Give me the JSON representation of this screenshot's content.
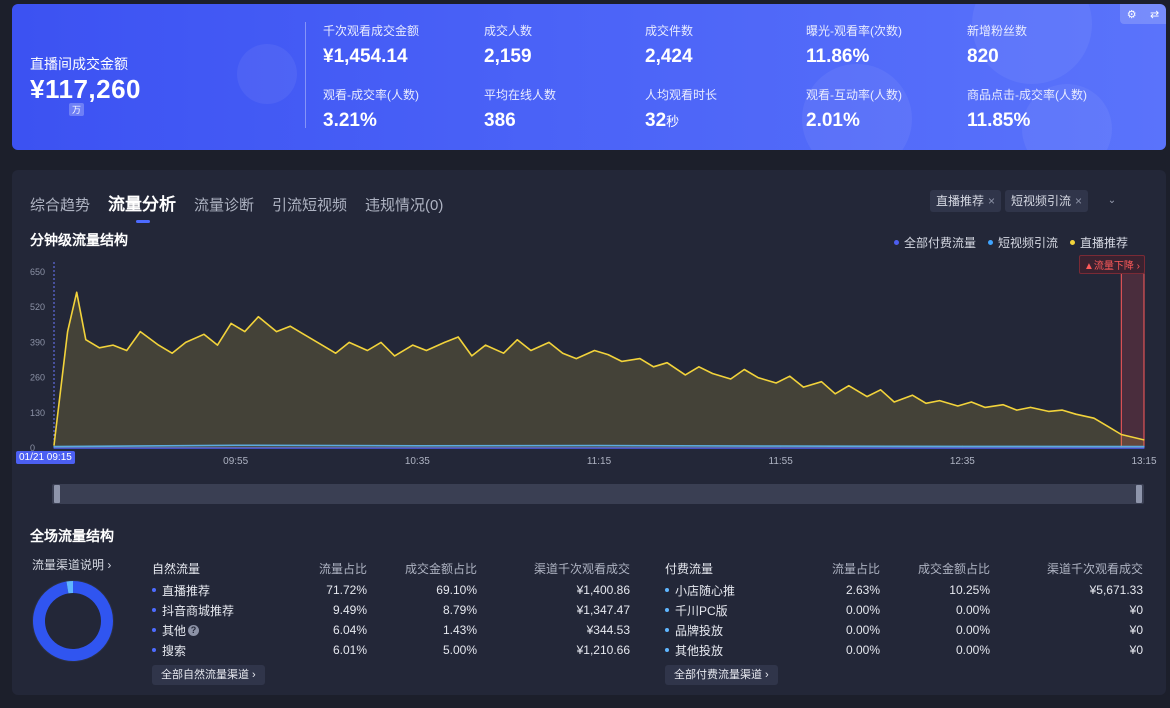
{
  "banner": {
    "gmv_label": "直播间成交金额",
    "gmv_value": "¥117,260",
    "gmv_unit": "万",
    "metrics": [
      {
        "label": "千次观看成交金额",
        "value": "¥1,454.14"
      },
      {
        "label": "成交人数",
        "value": "2,159"
      },
      {
        "label": "成交件数",
        "value": "2,424"
      },
      {
        "label": "曝光-观看率(次数)",
        "value": "11.86%"
      },
      {
        "label": "新增粉丝数",
        "value": "820"
      },
      {
        "label": "观看-成交率(人数)",
        "value": "3.21%"
      },
      {
        "label": "平均在线人数",
        "value": "386"
      },
      {
        "label": "人均观看时长",
        "value": "32",
        "unit": "秒"
      },
      {
        "label": "观看-互动率(人数)",
        "value": "2.01%"
      },
      {
        "label": "商品点击-成交率(人数)",
        "value": "11.85%"
      }
    ],
    "icons": [
      "gear-icon",
      "swap-icon"
    ]
  },
  "tabs": [
    {
      "label": "综合趋势",
      "active": false
    },
    {
      "label": "流量分析",
      "active": true
    },
    {
      "label": "流量诊断",
      "active": false
    },
    {
      "label": "引流短视频",
      "active": false
    },
    {
      "label": "违规情况(0)",
      "active": false
    }
  ],
  "filters": {
    "chips": [
      "直播推荐",
      "短视频引流"
    ],
    "remove_glyph": "×",
    "dropdown_glyph": "⌄"
  },
  "minute_section": {
    "title": "分钟级流量结构",
    "legend": [
      {
        "name": "全部付费流量",
        "color": "#4d5ef0"
      },
      {
        "name": "短视频引流",
        "color": "#3fa4ff"
      },
      {
        "name": "直播推荐",
        "color": "#f2d33b"
      }
    ],
    "alert": "▲流量下降 ›",
    "start_label": "01/21 09:15"
  },
  "chart_data": {
    "type": "area",
    "y_ticks": [
      0,
      130,
      260,
      390,
      520,
      650
    ],
    "ylim": [
      0,
      650
    ],
    "x_ticks": [
      "09:55",
      "10:35",
      "11:15",
      "11:55",
      "12:35",
      "13:15"
    ],
    "x_range": [
      "09:15",
      "13:15"
    ],
    "grid": false,
    "legend_position": "top-right",
    "series": [
      {
        "name": "直播推荐",
        "color": "#f2d33b",
        "x": [
          "09:15",
          "09:18",
          "09:20",
          "09:22",
          "09:25",
          "09:28",
          "09:31",
          "09:34",
          "09:38",
          "09:41",
          "09:44",
          "09:48",
          "09:51",
          "09:54",
          "09:57",
          "10:00",
          "10:04",
          "10:07",
          "10:10",
          "10:14",
          "10:17",
          "10:20",
          "10:24",
          "10:27",
          "10:30",
          "10:34",
          "10:37",
          "10:41",
          "10:44",
          "10:47",
          "10:50",
          "10:54",
          "10:57",
          "11:00",
          "11:04",
          "11:07",
          "11:10",
          "11:14",
          "11:17",
          "11:20",
          "11:24",
          "11:27",
          "11:30",
          "11:34",
          "11:37",
          "11:40",
          "11:44",
          "11:47",
          "11:50",
          "11:54",
          "11:57",
          "12:00",
          "12:04",
          "12:07",
          "12:10",
          "12:14",
          "12:17",
          "12:20",
          "12:24",
          "12:27",
          "12:30",
          "12:34",
          "12:37",
          "12:40",
          "12:44",
          "12:47",
          "12:50",
          "12:54",
          "12:57",
          "13:00",
          "13:04",
          "13:07",
          "13:10",
          "13:15"
        ],
        "values": [
          10,
          430,
          575,
          400,
          370,
          380,
          360,
          430,
          380,
          350,
          390,
          420,
          380,
          460,
          430,
          485,
          430,
          450,
          420,
          380,
          350,
          390,
          360,
          390,
          340,
          380,
          360,
          390,
          410,
          340,
          380,
          350,
          400,
          360,
          390,
          350,
          330,
          360,
          345,
          320,
          330,
          300,
          315,
          270,
          300,
          275,
          255,
          290,
          260,
          240,
          265,
          225,
          245,
          200,
          230,
          190,
          215,
          170,
          195,
          165,
          175,
          155,
          170,
          150,
          160,
          140,
          150,
          135,
          140,
          125,
          110,
          80,
          50,
          30
        ]
      },
      {
        "name": "短视频引流",
        "color": "#3fa4ff",
        "x": [
          "09:15",
          "09:55",
          "10:35",
          "11:15",
          "11:55",
          "12:35",
          "13:15"
        ],
        "values": [
          5,
          10,
          8,
          9,
          7,
          6,
          5
        ]
      },
      {
        "name": "全部付费流量",
        "color": "#4d5ef0",
        "x": [
          "09:15",
          "09:55",
          "10:35",
          "11:15",
          "11:55",
          "12:35",
          "13:15"
        ],
        "values": [
          0,
          0,
          0,
          0,
          0,
          0,
          0
        ]
      }
    ]
  },
  "full_section": {
    "title": "全场流量结构",
    "channel_link": "流量渠道说明 ›",
    "donut": {
      "slices": [
        {
          "name": "自然流量",
          "value": 97.37,
          "color": "#3055f0"
        },
        {
          "name": "付费流量",
          "value": 2.63,
          "color": "#5fb6ff"
        }
      ]
    }
  },
  "natural_table": {
    "headers": [
      "自然流量",
      "流量占比",
      "成交金额占比",
      "渠道千次观看成交"
    ],
    "rows": [
      {
        "name": "直播推荐",
        "share": "71.72%",
        "gmv_share": "69.10%",
        "gpm": "¥1,400.86",
        "help": false
      },
      {
        "name": "抖音商城推荐",
        "share": "9.49%",
        "gmv_share": "8.79%",
        "gpm": "¥1,347.47",
        "help": false
      },
      {
        "name": "其他",
        "share": "6.04%",
        "gmv_share": "1.43%",
        "gpm": "¥344.53",
        "help": true
      },
      {
        "name": "搜索",
        "share": "6.01%",
        "gmv_share": "5.00%",
        "gpm": "¥1,210.66",
        "help": false
      }
    ],
    "all_link": "全部自然流量渠道 ›"
  },
  "paid_table": {
    "headers": [
      "付费流量",
      "流量占比",
      "成交金额占比",
      "渠道千次观看成交"
    ],
    "rows": [
      {
        "name": "小店随心推",
        "share": "2.63%",
        "gmv_share": "10.25%",
        "gpm": "¥5,671.33",
        "help": false
      },
      {
        "name": "千川PC版",
        "share": "0.00%",
        "gmv_share": "0.00%",
        "gpm": "¥0",
        "help": false
      },
      {
        "name": "品牌投放",
        "share": "0.00%",
        "gmv_share": "0.00%",
        "gpm": "¥0",
        "help": false
      },
      {
        "name": "其他投放",
        "share": "0.00%",
        "gmv_share": "0.00%",
        "gpm": "¥0",
        "help": false
      }
    ],
    "all_link": "全部付费流量渠道 ›"
  }
}
